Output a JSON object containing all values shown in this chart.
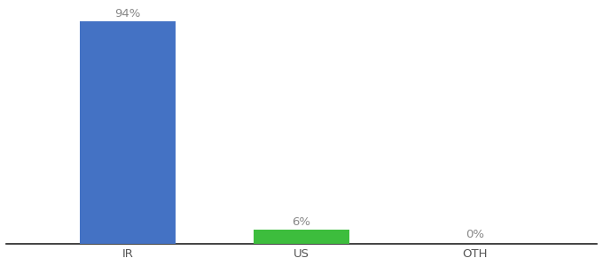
{
  "categories": [
    "IR",
    "US",
    "OTH"
  ],
  "values": [
    94,
    6,
    0
  ],
  "labels": [
    "94%",
    "6%",
    "0%"
  ],
  "bar_colors": [
    "#4472C4",
    "#3DBD3D",
    "#4472C4"
  ],
  "ylim": [
    0,
    100
  ],
  "background_color": "#ffffff",
  "label_fontsize": 9.5,
  "tick_fontsize": 9.5,
  "bar_width": 0.55,
  "label_color": "#888888",
  "tick_color": "#555555",
  "spine_color": "#222222"
}
